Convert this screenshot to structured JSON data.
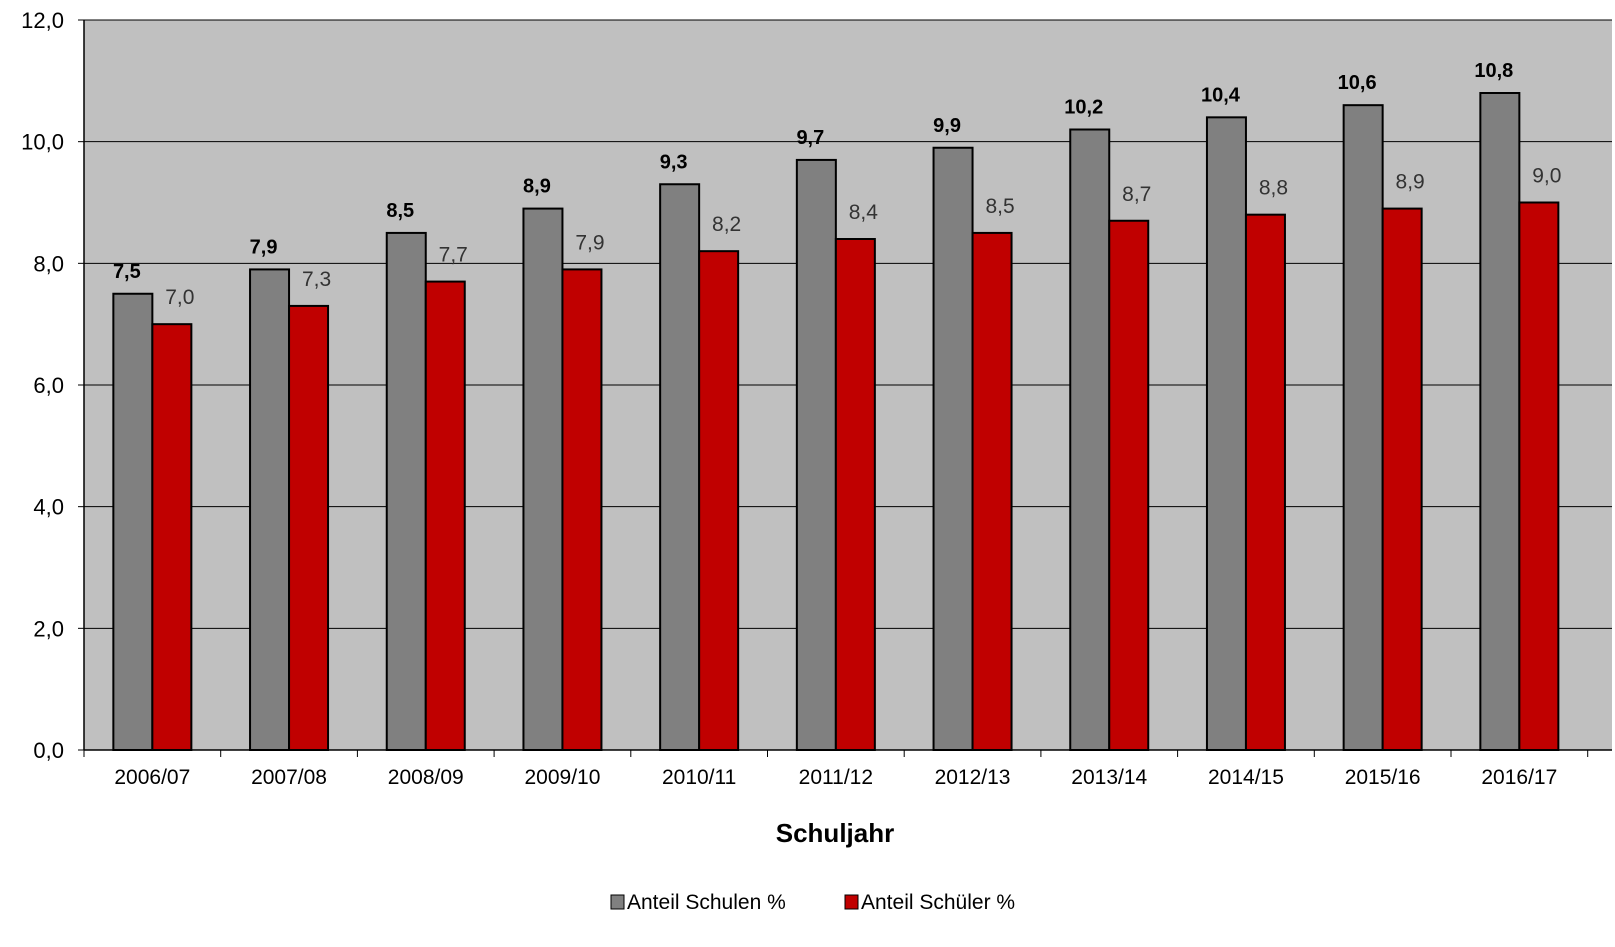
{
  "chart_data": {
    "type": "bar",
    "title": "",
    "xlabel": "Schuljahr",
    "ylabel": "",
    "ylim": [
      0,
      12
    ],
    "yticks": [
      "0,0",
      "2,0",
      "4,0",
      "6,0",
      "8,0",
      "10,0",
      "12,0"
    ],
    "categories": [
      "2006/07",
      "2007/08",
      "2008/09",
      "2009/10",
      "2010/11",
      "2011/12",
      "2012/13",
      "2013/14",
      "2014/15",
      "2015/16",
      "2016/17"
    ],
    "series": [
      {
        "name": "Anteil Schulen %",
        "color": "#808080",
        "values": [
          7.5,
          7.9,
          8.5,
          8.9,
          9.3,
          9.7,
          9.9,
          10.2,
          10.4,
          10.6,
          10.8
        ],
        "labels": [
          "7,5",
          "7,9",
          "8,5",
          "8,9",
          "9,3",
          "9,7",
          "9,9",
          "10,2",
          "10,4",
          "10,6",
          "10,8"
        ],
        "label_weight": "bold"
      },
      {
        "name": "Anteil Schüler %",
        "color": "#c00000",
        "values": [
          7.0,
          7.3,
          7.7,
          7.9,
          8.2,
          8.4,
          8.5,
          8.7,
          8.8,
          8.9,
          9.0
        ],
        "labels": [
          "7,0",
          "7,3",
          "7,7",
          "7,9",
          "8,2",
          "8,4",
          "8,5",
          "8,7",
          "8,8",
          "8,9",
          "9,0"
        ],
        "label_weight": "normal"
      }
    ],
    "plot_background": "#c0c0c0",
    "grid": true,
    "legend_position": "bottom-center"
  }
}
